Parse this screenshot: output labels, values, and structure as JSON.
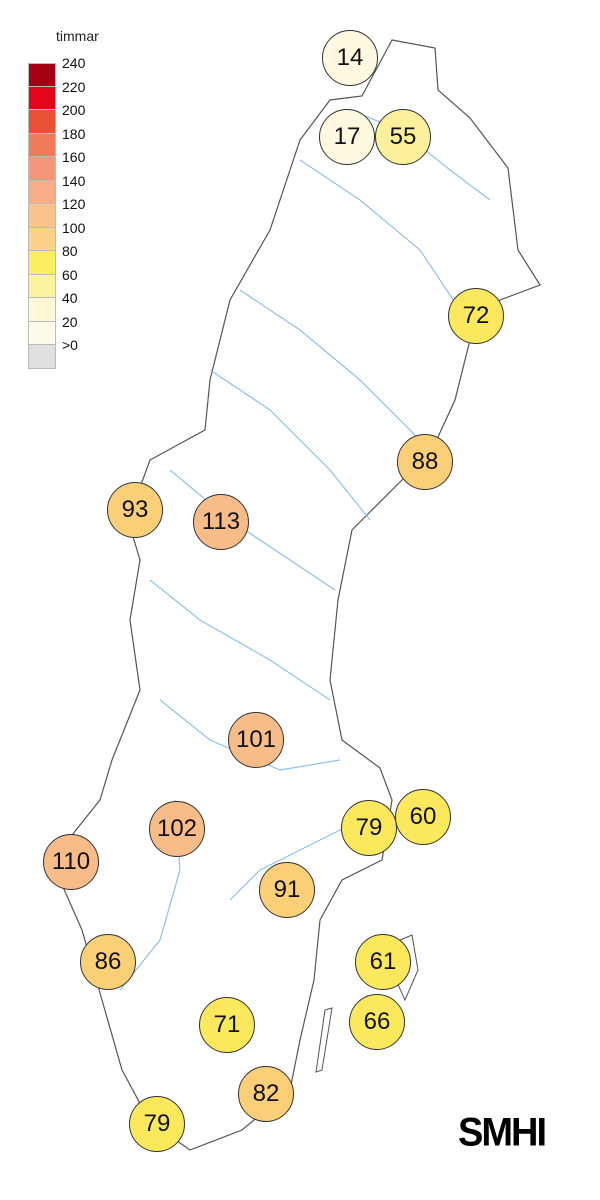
{
  "legend": {
    "title": "timmar",
    "classes": [
      {
        "label": "240",
        "color": "#a50014"
      },
      {
        "label": "220",
        "color": "#e3051b"
      },
      {
        "label": "200",
        "color": "#ea5034"
      },
      {
        "label": "180",
        "color": "#ef7b5c"
      },
      {
        "label": "160",
        "color": "#f3967a"
      },
      {
        "label": "140",
        "color": "#f7ad86"
      },
      {
        "label": "120",
        "color": "#f9c28f"
      },
      {
        "label": "100",
        "color": "#fbd28a"
      },
      {
        "label": "80",
        "color": "#fcee5e"
      },
      {
        "label": "60",
        "color": "#fdf29f"
      },
      {
        "label": "40",
        "color": "#fff8d6"
      },
      {
        "label": "20",
        "color": "#fffbea"
      },
      {
        "label": ">0",
        "color": "#e0e0e0"
      }
    ]
  },
  "stations": [
    {
      "value": "14",
      "color": "#fff9e2"
    },
    {
      "value": "17",
      "color": "#fff9e2"
    },
    {
      "value": "55",
      "color": "#fdf09c"
    },
    {
      "value": "72",
      "color": "#fbe85c"
    },
    {
      "value": "88",
      "color": "#fbcf78"
    },
    {
      "value": "93",
      "color": "#fbcf78"
    },
    {
      "value": "113",
      "color": "#f8bc88"
    },
    {
      "value": "101",
      "color": "#f8bc88"
    },
    {
      "value": "102",
      "color": "#f8bc88"
    },
    {
      "value": "60",
      "color": "#fbe85c"
    },
    {
      "value": "79",
      "color": "#fbe85c"
    },
    {
      "value": "110",
      "color": "#f8bc88"
    },
    {
      "value": "91",
      "color": "#fbcf78"
    },
    {
      "value": "86",
      "color": "#fbcf78"
    },
    {
      "value": "61",
      "color": "#fbe85c"
    },
    {
      "value": "66",
      "color": "#fbe85c"
    },
    {
      "value": "71",
      "color": "#fbe85c"
    },
    {
      "value": "82",
      "color": "#fbcf78"
    },
    {
      "value": "79",
      "color": "#fbe85c"
    }
  ],
  "logo": "SMHI"
}
